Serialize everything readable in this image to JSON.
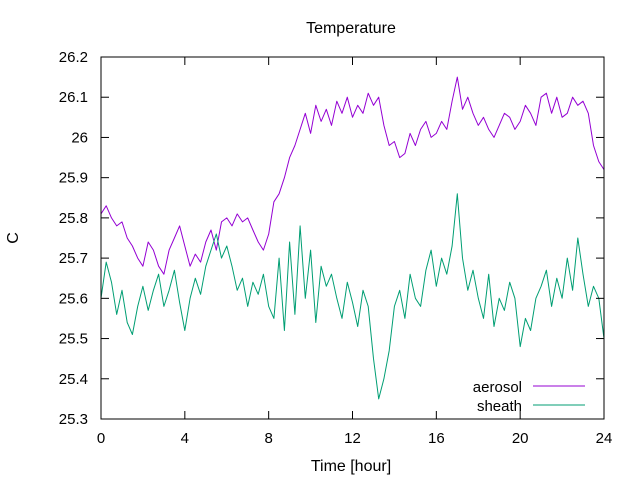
{
  "chart_data": {
    "type": "line",
    "title": "Temperature",
    "xlabel": "Time [hour]",
    "ylabel": "C",
    "xlim": [
      0,
      24
    ],
    "ylim": [
      25.3,
      26.2
    ],
    "x_ticks": [
      0,
      4,
      8,
      12,
      16,
      20,
      24
    ],
    "y_ticks": [
      25.3,
      25.4,
      25.5,
      25.6,
      25.7,
      25.8,
      25.9,
      26,
      26.1,
      26.2
    ],
    "y_tick_labels": [
      "25.3",
      "25.4",
      "25.5",
      "25.6",
      "25.7",
      "25.8",
      "25.9",
      "26",
      "26.1",
      "26.2"
    ],
    "grid": false,
    "legend_position": "bottom-right",
    "series": [
      {
        "name": "aerosol",
        "color": "#9400d3",
        "x": [
          0,
          0.25,
          0.5,
          0.75,
          1,
          1.25,
          1.5,
          1.75,
          2,
          2.25,
          2.5,
          2.75,
          3,
          3.25,
          3.5,
          3.75,
          4,
          4.25,
          4.5,
          4.75,
          5,
          5.25,
          5.5,
          5.75,
          6,
          6.25,
          6.5,
          6.75,
          7,
          7.25,
          7.5,
          7.75,
          8,
          8.25,
          8.5,
          8.75,
          9,
          9.25,
          9.5,
          9.75,
          10,
          10.25,
          10.5,
          10.75,
          11,
          11.25,
          11.5,
          11.75,
          12,
          12.25,
          12.5,
          12.75,
          13,
          13.25,
          13.5,
          13.75,
          14,
          14.25,
          14.5,
          14.75,
          15,
          15.25,
          15.5,
          15.75,
          16,
          16.25,
          16.5,
          16.75,
          17,
          17.25,
          17.5,
          17.75,
          18,
          18.25,
          18.5,
          18.75,
          19,
          19.25,
          19.5,
          19.75,
          20,
          20.25,
          20.5,
          20.75,
          21,
          21.25,
          21.5,
          21.75,
          22,
          22.25,
          22.5,
          22.75,
          23,
          23.25,
          23.5,
          23.75,
          24
        ],
        "y": [
          25.81,
          25.83,
          25.8,
          25.78,
          25.79,
          25.75,
          25.73,
          25.7,
          25.68,
          25.74,
          25.72,
          25.68,
          25.66,
          25.72,
          25.75,
          25.78,
          25.73,
          25.68,
          25.71,
          25.69,
          25.74,
          25.77,
          25.72,
          25.79,
          25.8,
          25.78,
          25.81,
          25.79,
          25.8,
          25.77,
          25.74,
          25.72,
          25.76,
          25.84,
          25.86,
          25.9,
          25.95,
          25.98,
          26.02,
          26.06,
          26.01,
          26.08,
          26.04,
          26.07,
          26.03,
          26.09,
          26.06,
          26.1,
          26.05,
          26.08,
          26.06,
          26.11,
          26.08,
          26.1,
          26.03,
          25.98,
          25.99,
          25.95,
          25.96,
          26.01,
          25.98,
          26.02,
          26.04,
          26.0,
          26.01,
          26.04,
          26.02,
          26.09,
          26.15,
          26.07,
          26.1,
          26.06,
          26.03,
          26.05,
          26.02,
          26.0,
          26.03,
          26.06,
          26.05,
          26.02,
          26.04,
          26.08,
          26.06,
          26.03,
          26.1,
          26.11,
          26.06,
          26.1,
          26.05,
          26.06,
          26.1,
          26.08,
          26.09,
          26.06,
          25.98,
          25.94,
          25.92
        ]
      },
      {
        "name": "sheath",
        "color": "#009e73",
        "x": [
          0,
          0.25,
          0.5,
          0.75,
          1,
          1.25,
          1.5,
          1.75,
          2,
          2.25,
          2.5,
          2.75,
          3,
          3.25,
          3.5,
          3.75,
          4,
          4.25,
          4.5,
          4.75,
          5,
          5.25,
          5.5,
          5.75,
          6,
          6.25,
          6.5,
          6.75,
          7,
          7.25,
          7.5,
          7.75,
          8,
          8.25,
          8.5,
          8.75,
          9,
          9.25,
          9.5,
          9.75,
          10,
          10.25,
          10.5,
          10.75,
          11,
          11.25,
          11.5,
          11.75,
          12,
          12.25,
          12.5,
          12.75,
          13,
          13.25,
          13.5,
          13.75,
          14,
          14.25,
          14.5,
          14.75,
          15,
          15.25,
          15.5,
          15.75,
          16,
          16.25,
          16.5,
          16.75,
          17,
          17.25,
          17.5,
          17.75,
          18,
          18.25,
          18.5,
          18.75,
          19,
          19.25,
          19.5,
          19.75,
          20,
          20.25,
          20.5,
          20.75,
          21,
          21.25,
          21.5,
          21.75,
          22,
          22.25,
          22.5,
          22.75,
          23,
          23.25,
          23.5,
          23.75,
          24
        ],
        "y": [
          25.6,
          25.69,
          25.64,
          25.56,
          25.62,
          25.54,
          25.51,
          25.58,
          25.63,
          25.57,
          25.62,
          25.66,
          25.58,
          25.62,
          25.67,
          25.59,
          25.52,
          25.6,
          25.65,
          25.61,
          25.68,
          25.72,
          25.76,
          25.7,
          25.73,
          25.68,
          25.62,
          25.65,
          25.58,
          25.64,
          25.61,
          25.66,
          25.58,
          25.55,
          25.7,
          25.52,
          25.74,
          25.56,
          25.78,
          25.6,
          25.72,
          25.54,
          25.68,
          25.63,
          25.66,
          25.6,
          25.55,
          25.64,
          25.59,
          25.53,
          25.62,
          25.58,
          25.45,
          25.35,
          25.4,
          25.47,
          25.58,
          25.62,
          25.55,
          25.66,
          25.6,
          25.58,
          25.67,
          25.72,
          25.63,
          25.7,
          25.66,
          25.73,
          25.86,
          25.7,
          25.62,
          25.67,
          25.6,
          25.55,
          25.66,
          25.53,
          25.6,
          25.57,
          25.64,
          25.6,
          25.48,
          25.55,
          25.52,
          25.6,
          25.63,
          25.67,
          25.58,
          25.65,
          25.6,
          25.7,
          25.62,
          25.75,
          25.66,
          25.58,
          25.63,
          25.6,
          25.5
        ]
      }
    ]
  }
}
